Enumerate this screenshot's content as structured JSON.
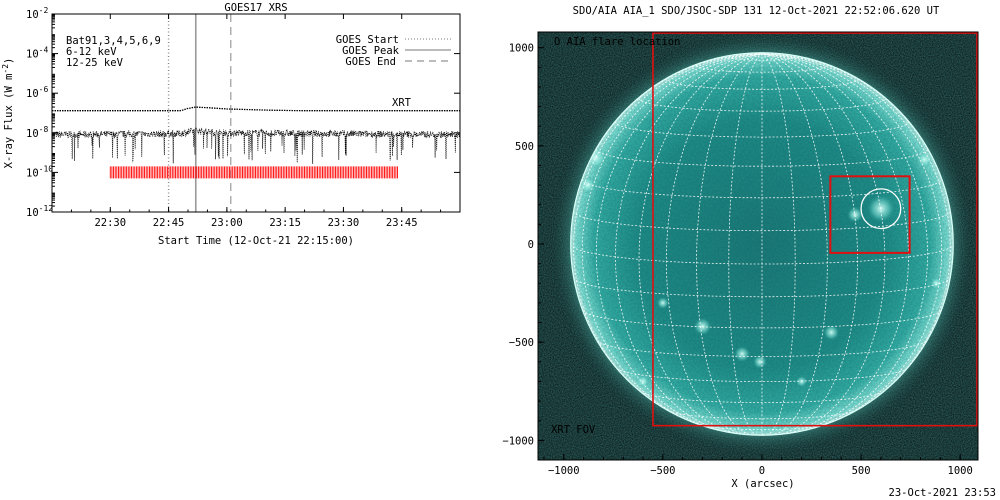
{
  "chart_data": [
    {
      "type": "line",
      "title": "GOES17 XRS",
      "xlabel": "Start Time (12-Oct-21 22:15:00)",
      "ylabel": "X-ray Flux (W m",
      "ylabel_exp": "-2",
      "ylabel_close": ")",
      "y_scale": "log",
      "y_ticks": [
        {
          "value": 1e-12,
          "exp": "-12"
        },
        {
          "value": 1e-10,
          "exp": "-10"
        },
        {
          "value": 1e-08,
          "exp": "-8"
        },
        {
          "value": 1e-06,
          "exp": "-6"
        },
        {
          "value": 0.0001,
          "exp": "-4"
        },
        {
          "value": 0.01,
          "exp": "-2"
        }
      ],
      "y_tick_base": "10",
      "ylim": [
        1e-12,
        0.01
      ],
      "x_domain": [
        "22:15",
        "24:00"
      ],
      "x_ticks": [
        "22:30",
        "22:45",
        "23:00",
        "23:15",
        "23:30",
        "23:45"
      ],
      "legend_left": {
        "position": "top-left",
        "items": [
          {
            "text": "Bat91,3,4,5,6,9",
            "color": "#000000"
          },
          {
            "text": "6-12 keV",
            "color": "#cc00cc"
          },
          {
            "text": "12-25 keV",
            "color": "#00cc00"
          }
        ]
      },
      "legend_right": {
        "position": "top-right",
        "items": [
          {
            "label": "GOES Start",
            "style": "dotted",
            "time": "22:45"
          },
          {
            "label": "GOES Peak",
            "style": "solid",
            "time": "22:52"
          },
          {
            "label": "GOES End",
            "style": "dashed",
            "time": "23:01"
          }
        ]
      },
      "xrt_label": "XRT",
      "xrt_label_color": "#ff0000",
      "xrt_coverage": {
        "start": "22:30",
        "end": "23:44",
        "flux": 1e-10
      },
      "series": [
        {
          "x": [
            "22:15",
            "22:48",
            "22:50",
            "22:52",
            "22:56",
            "23:00",
            "23:10",
            "23:20",
            "24:00"
          ],
          "values": [
            1.3e-07,
            1.3e-07,
            1.7e-07,
            2e-07,
            1.8e-07,
            1.6e-07,
            1.4e-07,
            1.3e-07,
            1.3e-07
          ],
          "style": "dotted"
        },
        {
          "x": [
            "22:15",
            "22:48",
            "22:52",
            "22:58",
            "24:00"
          ],
          "values": [
            8e-09,
            9e-09,
            1.3e-08,
            1e-08,
            8e-09
          ],
          "style": "noisy"
        }
      ]
    },
    {
      "type": "heatmap",
      "title": "SDO/AIA AIA_1 SDO/JSOC-SDP 131 12-Oct-2021 22:52:06.620 UT",
      "xlabel": "X (arcsec)",
      "xlim": [
        -1130,
        1090
      ],
      "ylim": [
        -1100,
        1080
      ],
      "x_ticks": [
        -1000,
        -500,
        0,
        500,
        1000
      ],
      "y_ticks": [
        -1000,
        -500,
        0,
        500,
        1000
      ],
      "legend_text": "O AIA flare location",
      "solar_disk_radius": 965,
      "flare_location": {
        "x": 600,
        "y": 180,
        "radius": 100
      },
      "flare_box": {
        "x0": 345,
        "x1": 745,
        "y0": -45,
        "y1": 345
      },
      "xrt_fov": {
        "x0": -550,
        "x1": 1090,
        "y0": -920,
        "y1": 1080,
        "label": "XRT FOV"
      },
      "colors": {
        "disk": "#2fa09a",
        "limb": "#b0fff6",
        "box": "#e01010",
        "background": "#030808"
      }
    }
  ],
  "timestamp": "23-Oct-2021 23:53"
}
